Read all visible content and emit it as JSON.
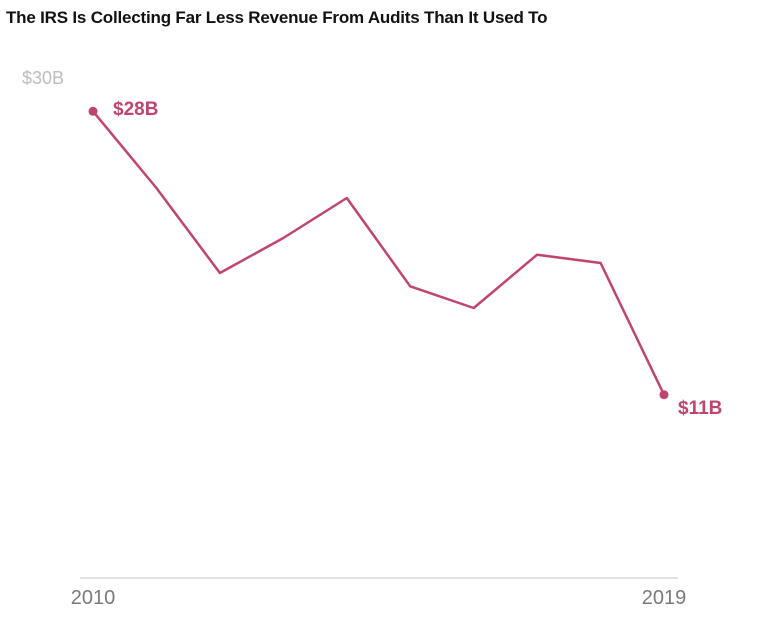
{
  "title": "The IRS Is Collecting Far Less Revenue From Audits Than It Used To",
  "chart_data": {
    "type": "line",
    "title": "The IRS Is Collecting Far Less Revenue From Audits Than It Used To",
    "xlabel": "",
    "ylabel": "",
    "x": [
      2010,
      2011,
      2012,
      2013,
      2014,
      2015,
      2016,
      2017,
      2018,
      2019
    ],
    "series": [
      {
        "values": [
          28.0,
          23.4,
          18.3,
          20.4,
          22.8,
          17.5,
          16.2,
          19.4,
          18.9,
          11.0
        ]
      }
    ],
    "ylim": [
      0,
      30
    ],
    "y_tick_labels": [
      "$30B"
    ],
    "x_tick_labels": [
      "2010",
      "2019"
    ],
    "annotations": [
      {
        "text": "$28B",
        "x": 2010,
        "y": 28.0
      },
      {
        "text": "$11B",
        "x": 2019,
        "y": 11.0
      }
    ],
    "grid": false,
    "colors": {
      "line": "#c0456d",
      "axis": "#d9d9d9"
    }
  }
}
